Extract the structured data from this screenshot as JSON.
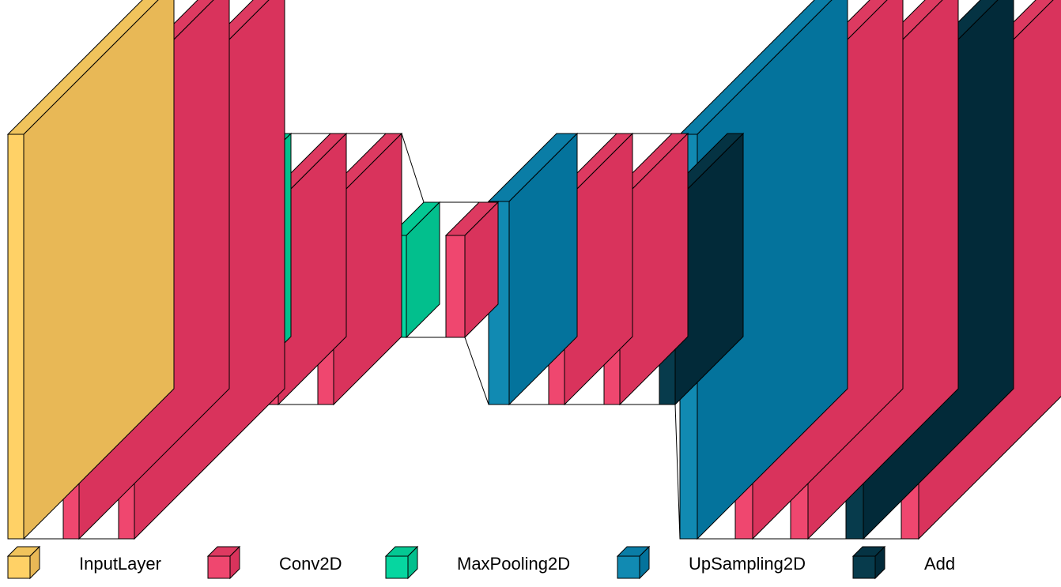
{
  "layer_types": {
    "input": {
      "front": "#FFD166",
      "side": "#E8B856",
      "top": "#F0C35C"
    },
    "conv": {
      "front": "#EF476F",
      "side": "#D9335C",
      "top": "#DD3A61"
    },
    "pool": {
      "front": "#06D6A0",
      "side": "#02BF8D",
      "top": "#04C893"
    },
    "upsample": {
      "front": "#118AB2",
      "side": "#04739C",
      "top": "#0A7DA6"
    },
    "add": {
      "front": "#073B4C",
      "side": "#022A39",
      "top": "#053343"
    }
  },
  "layers": [
    {
      "type": "input"
    },
    {
      "type": "conv"
    },
    {
      "type": "conv"
    },
    {
      "type": "pool"
    },
    {
      "type": "conv"
    },
    {
      "type": "conv"
    },
    {
      "type": "pool"
    },
    {
      "type": "conv"
    },
    {
      "type": "upsample"
    },
    {
      "type": "conv"
    },
    {
      "type": "conv"
    },
    {
      "type": "add"
    },
    {
      "type": "upsample"
    },
    {
      "type": "conv"
    },
    {
      "type": "conv"
    },
    {
      "type": "add"
    },
    {
      "type": "conv"
    }
  ],
  "legend": [
    {
      "type": "input",
      "label": "InputLayer"
    },
    {
      "type": "conv",
      "label": "Conv2D"
    },
    {
      "type": "pool",
      "label": "MaxPooling2D"
    },
    {
      "type": "upsample",
      "label": "UpSampling2D"
    },
    {
      "type": "add",
      "label": "Add"
    }
  ]
}
